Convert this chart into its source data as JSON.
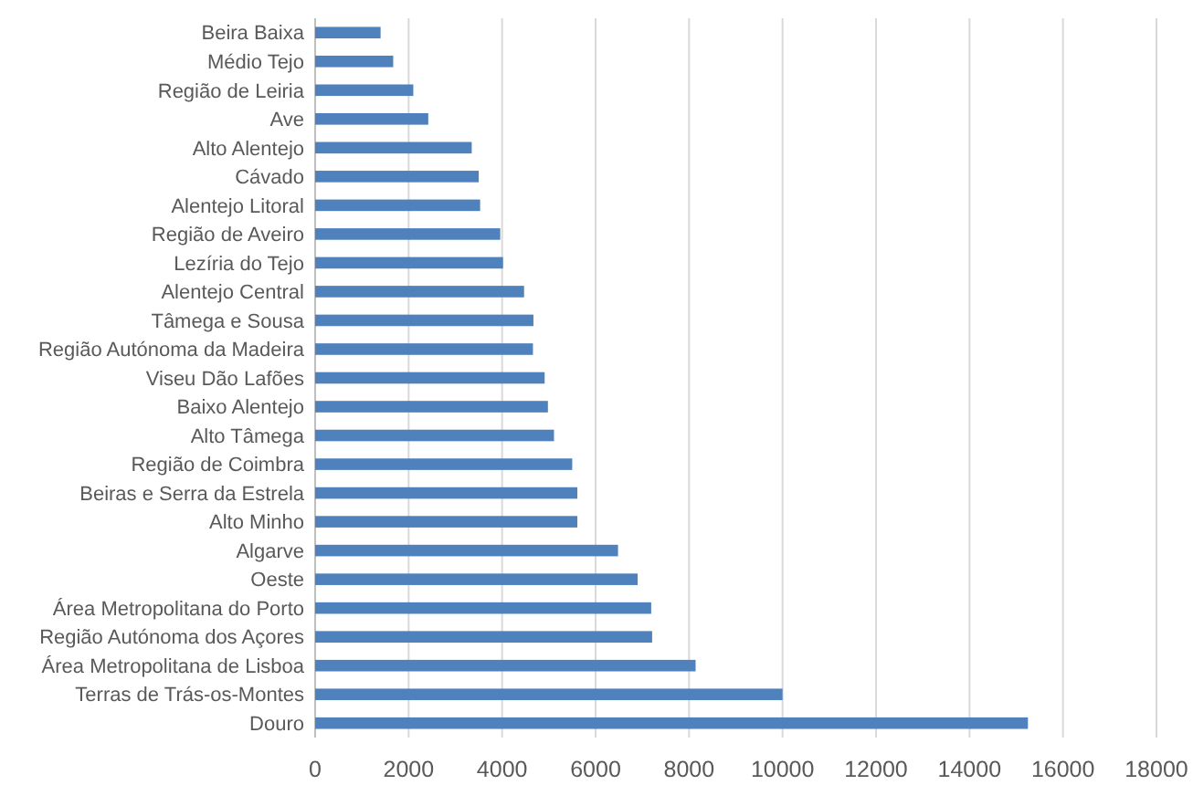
{
  "chart_data": {
    "type": "bar",
    "orientation": "horizontal",
    "categories": [
      "Beira Baixa",
      "Médio Tejo",
      "Região de Leiria",
      "Ave",
      "Alto Alentejo",
      "Cávado",
      "Alentejo Litoral",
      "Região de Aveiro",
      "Lezíria do Tejo",
      "Alentejo Central",
      "Tâmega e Sousa",
      "Região Autónoma da Madeira",
      "Viseu Dão Lafões",
      "Baixo Alentejo",
      "Alto Tâmega",
      "Região de Coimbra",
      "Beiras e Serra da Estrela",
      "Alto Minho",
      "Algarve",
      "Oeste",
      "Área Metropolitana do Porto",
      "Região Autónoma dos Açores",
      "Área Metropolitana de Lisboa",
      "Terras de Trás-os-Montes",
      "Douro"
    ],
    "values": [
      1400,
      1670,
      2100,
      2420,
      3350,
      3500,
      3530,
      3960,
      4020,
      4470,
      4670,
      4660,
      4910,
      4980,
      5110,
      5500,
      5610,
      5610,
      6480,
      6900,
      7190,
      7210,
      8140,
      10000,
      15250
    ],
    "color": "#4f81bd",
    "xlim": [
      0,
      18000
    ],
    "xticks": [
      0,
      2000,
      4000,
      6000,
      8000,
      10000,
      12000,
      14000,
      16000,
      18000
    ],
    "grid": "x"
  }
}
